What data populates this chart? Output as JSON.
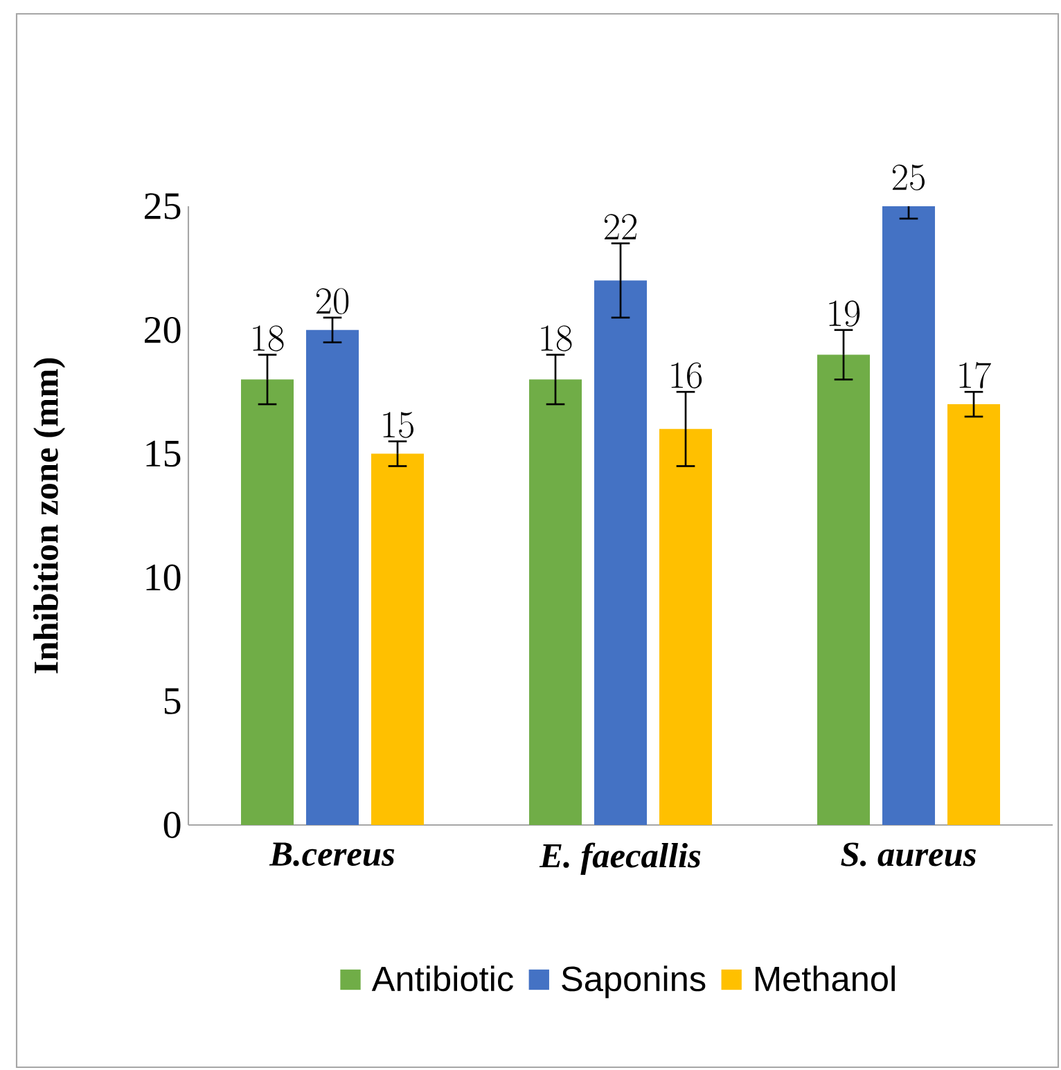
{
  "chart_data": {
    "type": "bar",
    "ylabel": "Inhibition zone (mm)",
    "categories": [
      "B.cereus",
      "E. faecallis",
      "S. aureus"
    ],
    "series": [
      {
        "name": "Antibiotic",
        "color": "#70ad47",
        "values": [
          18,
          18,
          19
        ],
        "errors": [
          1,
          1,
          1
        ]
      },
      {
        "name": "Saponins",
        "color": "#4472c4",
        "values": [
          20,
          22,
          25
        ],
        "errors": [
          0.5,
          1.5,
          0.5
        ]
      },
      {
        "name": "Methanol",
        "color": "#ffc000",
        "values": [
          15,
          16,
          17
        ],
        "errors": [
          0.5,
          1.5,
          0.5
        ]
      }
    ],
    "ylim": [
      0,
      25
    ],
    "yticks": [
      0,
      5,
      10,
      15,
      20,
      25
    ],
    "data_labels": true,
    "legend": "bottom"
  }
}
